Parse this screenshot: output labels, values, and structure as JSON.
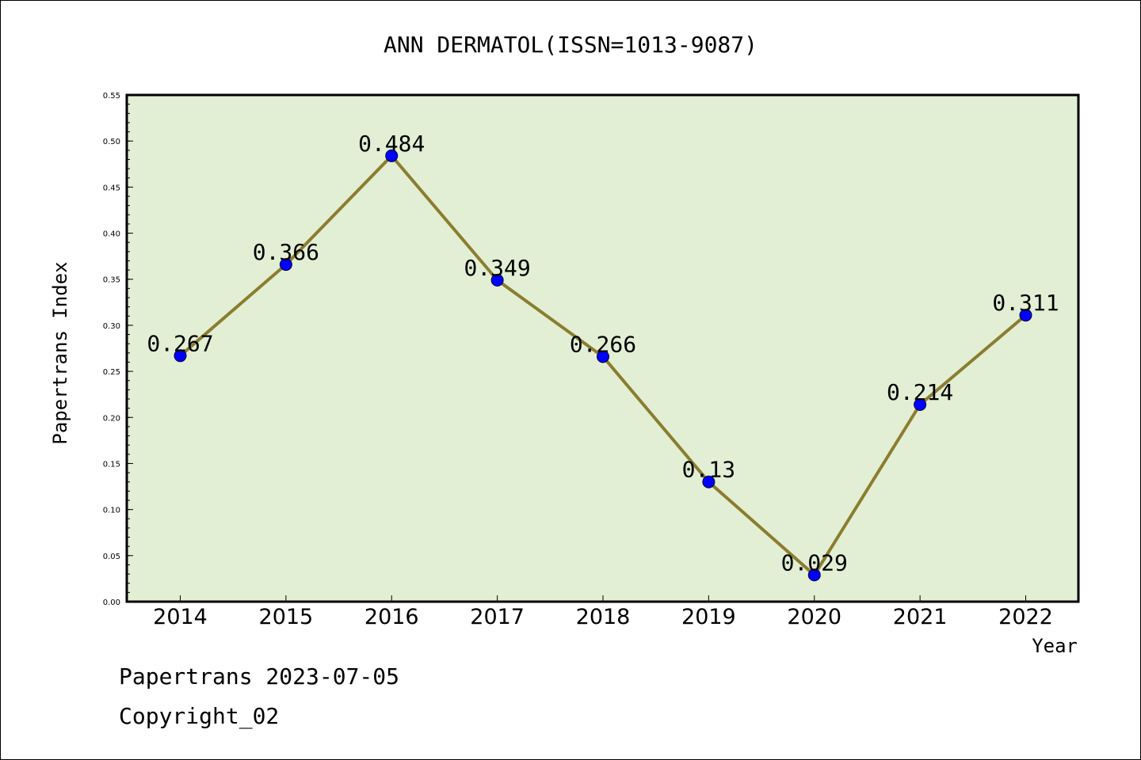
{
  "chart_data": {
    "type": "line",
    "title": "ANN DERMATOL(ISSN=1013-9087)",
    "xlabel": "Year",
    "ylabel": "Papertrans Index",
    "categories": [
      "2014",
      "2015",
      "2016",
      "2017",
      "2018",
      "2019",
      "2020",
      "2021",
      "2022"
    ],
    "series": [
      {
        "values": [
          0.267,
          0.366,
          0.484,
          0.349,
          0.266,
          0.13,
          0.029,
          0.214,
          0.311
        ],
        "labels": [
          "0.267",
          "0.366",
          "0.484",
          "0.349",
          "0.266",
          "0.13",
          "0.029",
          "0.214",
          "0.311"
        ]
      }
    ],
    "ylim": [
      0,
      0.55
    ],
    "yticks": [
      "0.00",
      "0.05",
      "0.10",
      "0.15",
      "0.20",
      "0.25",
      "0.30",
      "0.35",
      "0.40",
      "0.45",
      "0.50",
      "0.55"
    ],
    "grid": false,
    "colors": {
      "plot_background": "#e2efd4",
      "line": "#8b7d2f",
      "marker": "#0000ff"
    }
  },
  "footer": {
    "line1": "Papertrans 2023-07-05",
    "line2": "Copyright_02"
  }
}
